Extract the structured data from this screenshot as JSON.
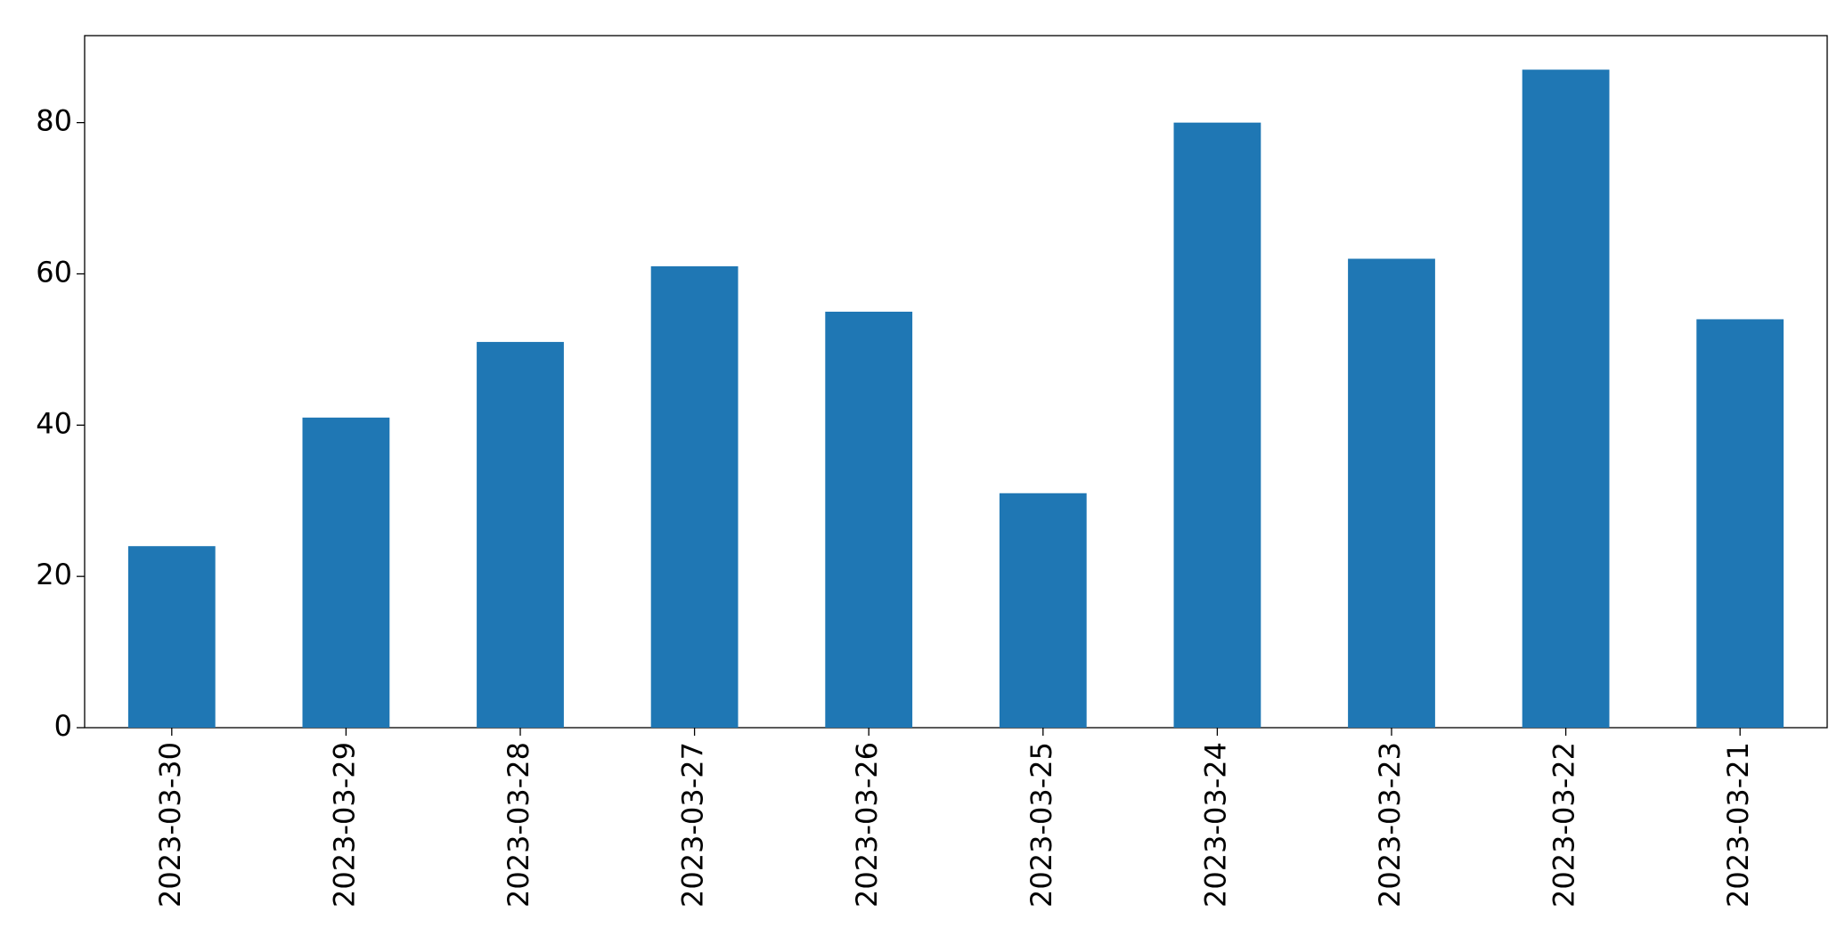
{
  "chart_data": {
    "type": "bar",
    "categories": [
      "2023-03-30",
      "2023-03-29",
      "2023-03-28",
      "2023-03-27",
      "2023-03-26",
      "2023-03-25",
      "2023-03-24",
      "2023-03-23",
      "2023-03-22",
      "2023-03-21"
    ],
    "values": [
      24,
      41,
      51,
      61,
      55,
      31,
      80,
      62,
      87,
      54
    ],
    "color": "#1f77b4",
    "ylim": [
      0,
      91.5
    ],
    "yticks": [
      0,
      20,
      40,
      60,
      80
    ],
    "grid": false
  }
}
